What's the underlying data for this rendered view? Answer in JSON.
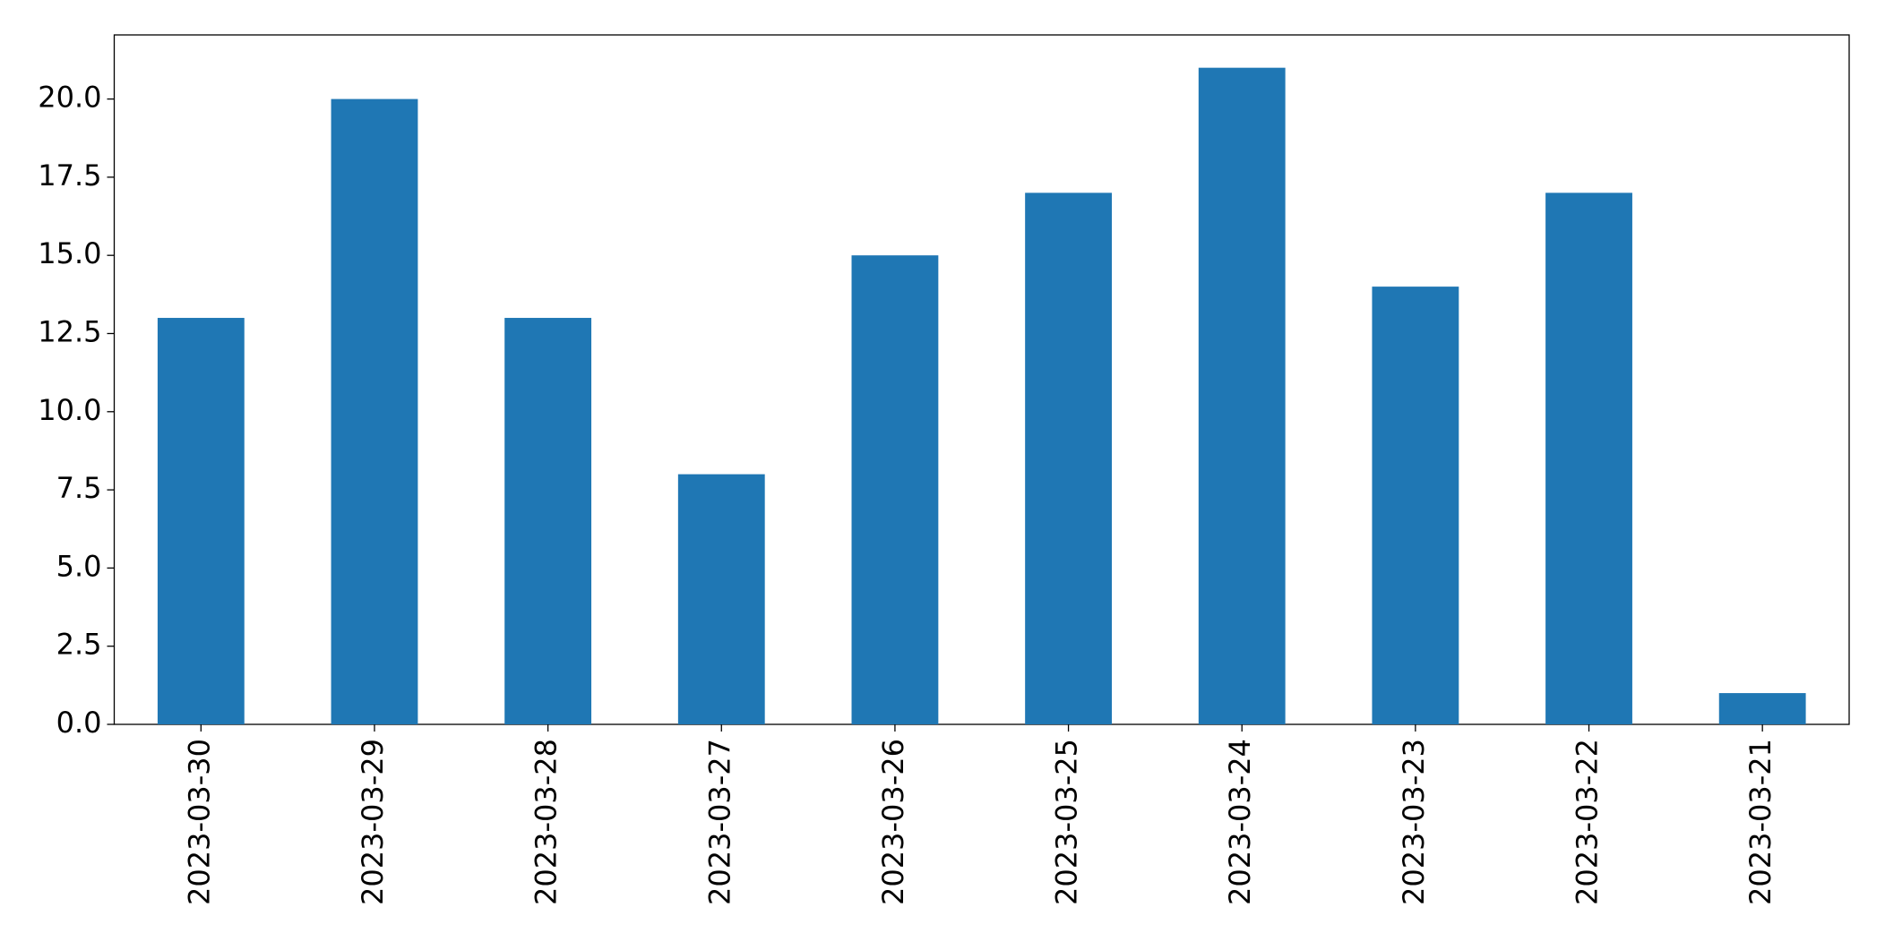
{
  "chart_data": {
    "type": "bar",
    "categories": [
      "2023-03-30",
      "2023-03-29",
      "2023-03-28",
      "2023-03-27",
      "2023-03-26",
      "2023-03-25",
      "2023-03-24",
      "2023-03-23",
      "2023-03-22",
      "2023-03-21"
    ],
    "values": [
      13,
      20,
      13,
      8,
      15,
      17,
      21,
      14,
      17,
      1
    ],
    "color": "#1f77b4",
    "ylim": [
      0,
      22.05
    ],
    "yticks": [
      {
        "value": 0,
        "label": "0.0"
      },
      2.5,
      {
        "value": 5,
        "label": "5.0"
      },
      7.5,
      {
        "value": 10,
        "label": "10.0"
      },
      12.5,
      {
        "value": 15,
        "label": "15.0"
      },
      17.5,
      {
        "value": 20,
        "label": "20.0"
      }
    ],
    "grid": false
  }
}
